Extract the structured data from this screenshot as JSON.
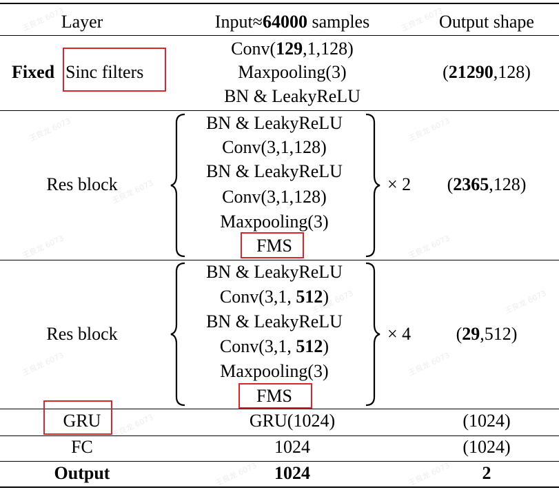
{
  "headers": {
    "layer": "Layer",
    "input_prefix": "Input",
    "input_approx": "≈",
    "input_value": "64000",
    "input_suffix": " samples",
    "output": "Output shape"
  },
  "fixed_row": {
    "fixed_label": "Fixed",
    "name": "Sinc filters",
    "conv_prefix": "Conv(",
    "conv_bold": "129",
    "conv_suffix": ",1,128)",
    "maxpool": "Maxpooling(3)",
    "bn": "BN & LeakyReLU",
    "out_open": "(",
    "out_bold": "21290",
    "out_rest": ",128)"
  },
  "res_block_1": {
    "label": "Res block",
    "line1": "BN & LeakyReLU",
    "line2": "Conv(3,1,128)",
    "line3": "BN & LeakyReLU",
    "line4": "Conv(3,1,128)",
    "line5": "Maxpooling(3)",
    "line6": "FMS",
    "repeat": "× 2",
    "out_open": "(",
    "out_bold": "2365",
    "out_rest": ",128)"
  },
  "res_block_2": {
    "label": "Res block",
    "line1": "BN & LeakyReLU",
    "line2_prefix": "Conv(3,1, ",
    "line2_bold": "512",
    "line2_suffix": ")",
    "line3": "BN & LeakyReLU",
    "line4_prefix": "Conv(3,1, ",
    "line4_bold": "512",
    "line4_suffix": ")",
    "line5": "Maxpooling(3)",
    "line6": "FMS",
    "repeat": "× 4",
    "out_open": "(",
    "out_bold": "29",
    "out_rest": ",512)"
  },
  "gru_row": {
    "label": "GRU",
    "input": "GRU(1024)",
    "output": "(1024)"
  },
  "fc_row": {
    "label": "FC",
    "input": "1024",
    "output": "(1024)"
  },
  "output_row": {
    "label": "Output",
    "input": "1024",
    "output": "2"
  },
  "watermark": "王良龙 6073",
  "colors": {
    "highlight": "#d9242f",
    "rule": "#000000",
    "background": "#ffffff"
  }
}
